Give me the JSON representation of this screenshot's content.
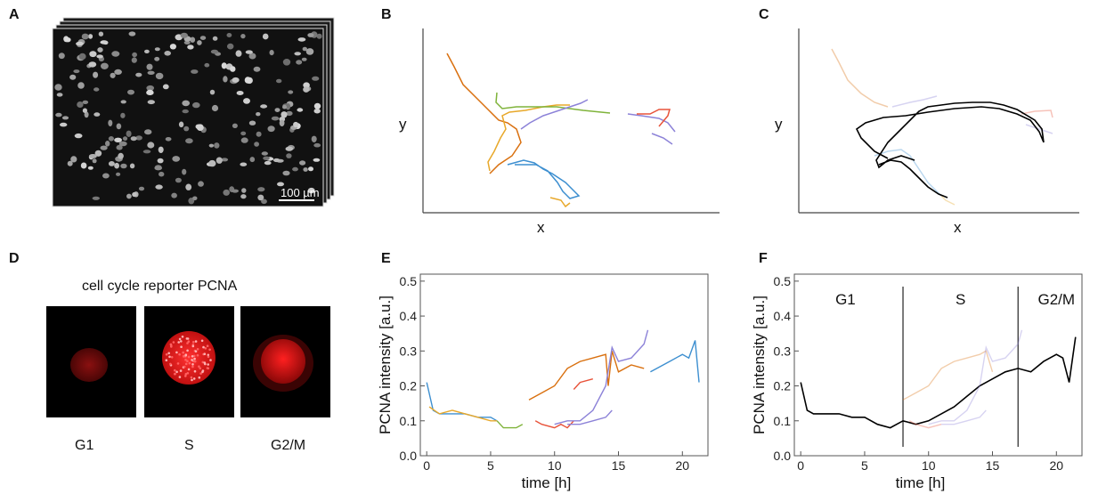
{
  "panels": {
    "A": {
      "label": "A",
      "scalebar": "100 µm"
    },
    "B": {
      "label": "B",
      "xlabel": "x",
      "ylabel": "y"
    },
    "C": {
      "label": "C",
      "xlabel": "x",
      "ylabel": "y"
    },
    "D": {
      "label": "D",
      "title": "cell cycle reporter PCNA",
      "phases": [
        "G1",
        "S",
        "G2/M"
      ]
    },
    "E": {
      "label": "E"
    },
    "F": {
      "label": "F",
      "phase_labels": [
        "G1",
        "S",
        "G2/M"
      ]
    }
  },
  "colors": {
    "orange": "#d9700f",
    "yellow": "#e8a82a",
    "green": "#7fb33a",
    "blue": "#3d8fd0",
    "purple": "#8c82d8",
    "red": "#e8533a",
    "black": "#000000",
    "nucleus_red": "#e01010"
  },
  "chart_data": [
    {
      "panel": "E",
      "type": "line",
      "xlabel": "time [h]",
      "ylabel": "PCNA intensity [a.u.]",
      "xlim": [
        -0.5,
        22
      ],
      "ylim": [
        0,
        0.52
      ],
      "xticks": [
        0,
        5,
        10,
        15,
        20
      ],
      "yticks": [
        0.0,
        0.1,
        0.2,
        0.3,
        0.4,
        0.5
      ],
      "series": [
        {
          "color": "#3d8fd0",
          "x": [
            0,
            0.5,
            1,
            2,
            3,
            4,
            5,
            5.5
          ],
          "y": [
            0.21,
            0.13,
            0.12,
            0.12,
            0.12,
            0.11,
            0.11,
            0.1
          ]
        },
        {
          "color": "#e8a82a",
          "x": [
            0.2,
            1,
            2,
            3,
            4,
            5,
            5.5
          ],
          "y": [
            0.14,
            0.12,
            0.13,
            0.12,
            0.11,
            0.1,
            0.1
          ]
        },
        {
          "color": "#7fb33a",
          "x": [
            5.5,
            6,
            6.5,
            7,
            7.5
          ],
          "y": [
            0.1,
            0.08,
            0.08,
            0.08,
            0.09
          ]
        },
        {
          "color": "#d9700f",
          "x": [
            8,
            9,
            10,
            11,
            12,
            13,
            14,
            14.2,
            14.5,
            15,
            16,
            17
          ],
          "y": [
            0.16,
            0.18,
            0.2,
            0.25,
            0.27,
            0.28,
            0.29,
            0.2,
            0.3,
            0.24,
            0.26,
            0.25
          ]
        },
        {
          "color": "#e8533a",
          "x": [
            8.5,
            9,
            10,
            10.5,
            11,
            11.5
          ],
          "y": [
            0.1,
            0.09,
            0.08,
            0.09,
            0.08,
            0.1
          ]
        },
        {
          "color": "#8c82d8",
          "x": [
            10,
            11,
            12,
            13,
            14,
            14.5,
            15,
            16,
            17,
            17.3
          ],
          "y": [
            0.09,
            0.1,
            0.1,
            0.13,
            0.2,
            0.31,
            0.27,
            0.28,
            0.32,
            0.36
          ]
        },
        {
          "color": "#8c82d8",
          "x": [
            11,
            12,
            13,
            14,
            14.5
          ],
          "y": [
            0.09,
            0.09,
            0.1,
            0.11,
            0.13
          ]
        },
        {
          "color": "#e8533a",
          "x": [
            11.5,
            12,
            13
          ],
          "y": [
            0.19,
            0.21,
            0.22
          ]
        },
        {
          "color": "#3d8fd0",
          "x": [
            17.5,
            18,
            19,
            20,
            20.5,
            21,
            21.3
          ],
          "y": [
            0.24,
            0.25,
            0.27,
            0.29,
            0.28,
            0.33,
            0.21
          ]
        }
      ]
    },
    {
      "panel": "F",
      "type": "line",
      "xlabel": "time [h]",
      "ylabel": "PCNA intensity [a.u.]",
      "xlim": [
        -0.5,
        22
      ],
      "ylim": [
        0,
        0.52
      ],
      "xticks": [
        0,
        5,
        10,
        15,
        20
      ],
      "yticks": [
        0.0,
        0.1,
        0.2,
        0.3,
        0.4,
        0.5
      ],
      "phase_boundaries": [
        8,
        17
      ],
      "series": [
        {
          "color": "#000000",
          "x": [
            0,
            0.5,
            1,
            2,
            3,
            4,
            5,
            6,
            7,
            8,
            9,
            10,
            11,
            12,
            13,
            14,
            15,
            16,
            17,
            18,
            19,
            20,
            20.5,
            21,
            21.5
          ],
          "y": [
            0.21,
            0.13,
            0.12,
            0.12,
            0.12,
            0.11,
            0.11,
            0.09,
            0.08,
            0.1,
            0.09,
            0.1,
            0.12,
            0.14,
            0.17,
            0.2,
            0.22,
            0.24,
            0.25,
            0.24,
            0.27,
            0.29,
            0.28,
            0.21,
            0.34
          ]
        },
        {
          "color": "#d9700f",
          "faded": true,
          "x": [
            8,
            9,
            10,
            11,
            12,
            13,
            14,
            14.5,
            15
          ],
          "y": [
            0.16,
            0.18,
            0.2,
            0.25,
            0.27,
            0.28,
            0.29,
            0.3,
            0.24
          ]
        },
        {
          "color": "#8c82d8",
          "faded": true,
          "x": [
            10,
            11,
            12,
            13,
            14,
            14.5,
            15,
            16,
            17,
            17.3
          ],
          "y": [
            0.09,
            0.1,
            0.1,
            0.13,
            0.2,
            0.31,
            0.27,
            0.28,
            0.32,
            0.36
          ]
        },
        {
          "color": "#8c82d8",
          "faded": true,
          "x": [
            11,
            12,
            13,
            14,
            14.5
          ],
          "y": [
            0.09,
            0.09,
            0.1,
            0.11,
            0.13
          ]
        },
        {
          "color": "#e8533a",
          "faded": true,
          "x": [
            8.5,
            9,
            10,
            11
          ],
          "y": [
            0.1,
            0.09,
            0.08,
            0.09
          ]
        }
      ]
    }
  ]
}
